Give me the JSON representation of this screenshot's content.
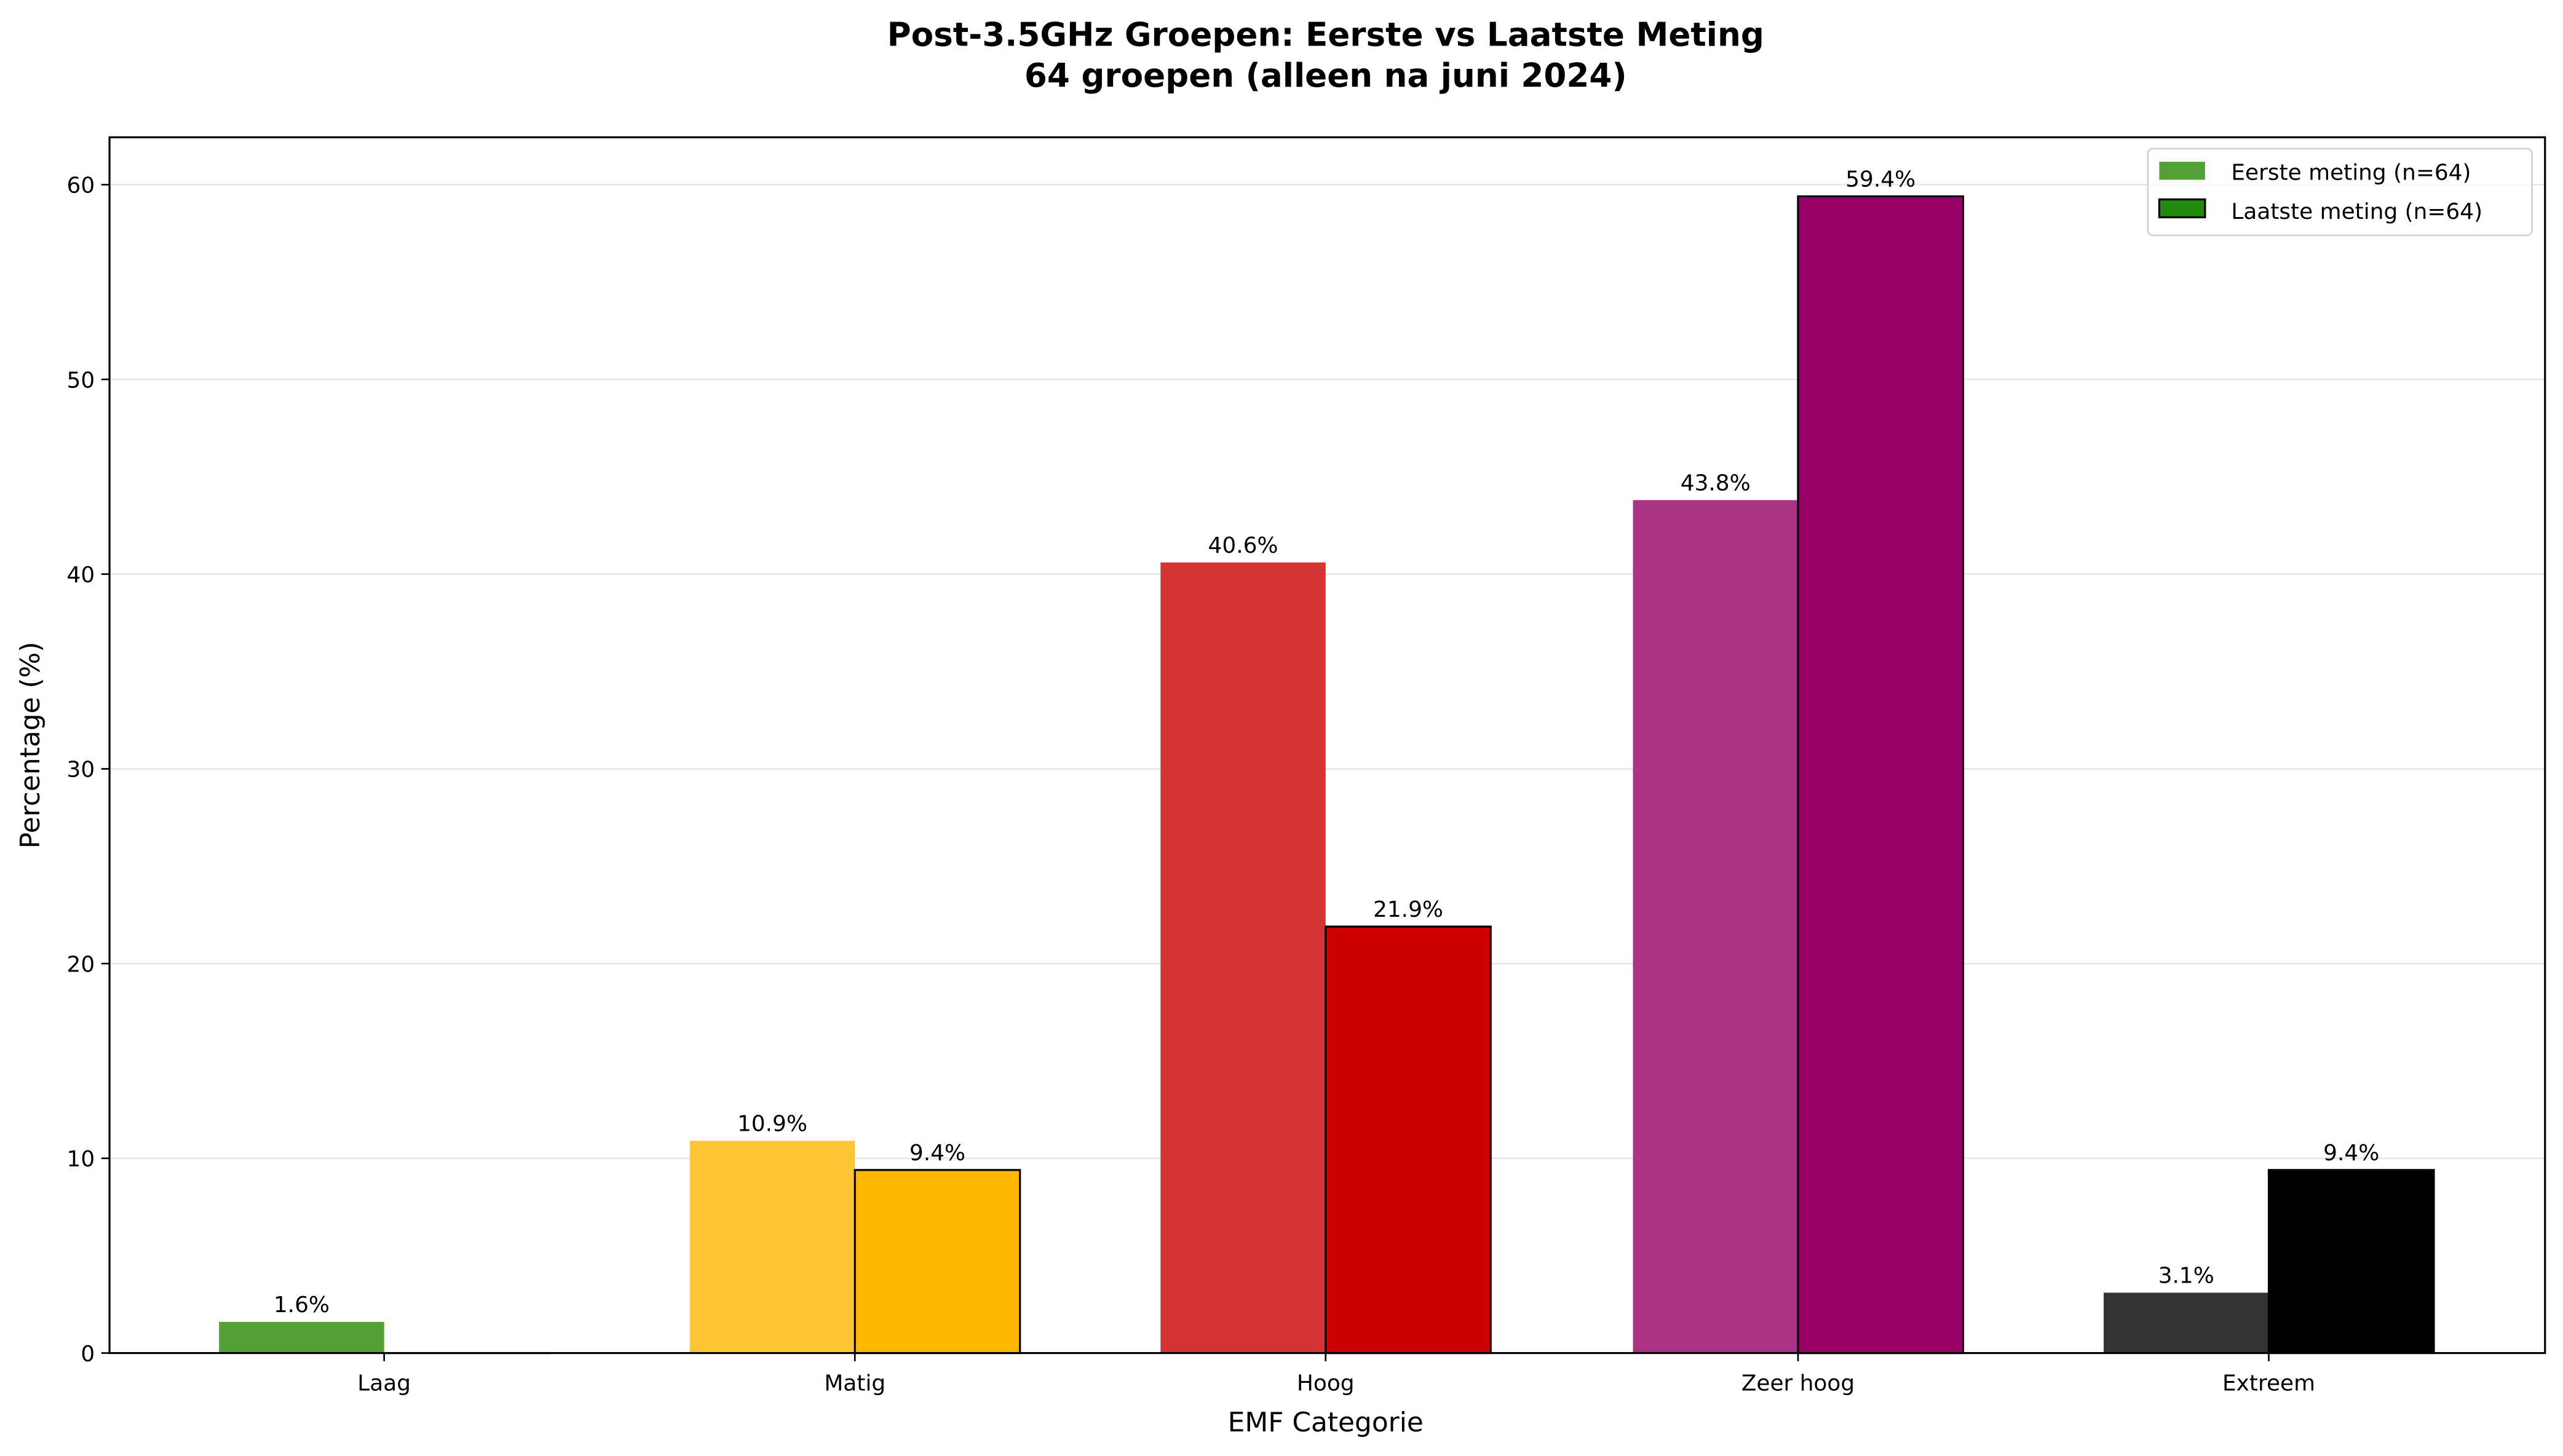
{
  "chart_data": {
    "type": "bar",
    "title": "Post-3.5GHz Groepen: Eerste vs Laatste Meting",
    "subtitle": "64 groepen (alleen na juni 2024)",
    "xlabel": "EMF Categorie",
    "ylabel": "Percentage (%)",
    "ylim": [
      0,
      62.4
    ],
    "yticks": [
      0,
      10,
      20,
      30,
      40,
      50,
      60
    ],
    "grid": "y",
    "legend_position": "upper right",
    "categories": [
      "Laag",
      "Matig",
      "Hoog",
      "Zeer hoog",
      "Extreem"
    ],
    "series": [
      {
        "name": "Eerste meting (n=64)",
        "values": [
          1.6,
          10.9,
          40.6,
          43.8,
          3.1
        ],
        "labels": [
          "1.6%",
          "10.9%",
          "40.6%",
          "43.8%",
          "3.1%"
        ],
        "colors": [
          "#52a036",
          "#fec534",
          "#d53434",
          "#ab3383",
          "#333333"
        ],
        "edge": "none"
      },
      {
        "name": "Laatste meting (n=64)",
        "values": [
          0.0,
          9.4,
          21.9,
          59.4,
          9.4
        ],
        "labels": [
          "",
          "9.4%",
          "21.9%",
          "59.4%",
          "9.4%"
        ],
        "colors": [
          "#228b0e",
          "#ffb800",
          "#cc0000",
          "#990066",
          "#000000"
        ],
        "edge": "#000000"
      }
    ]
  },
  "legend": {
    "items": [
      {
        "label": "Eerste meting (n=64)",
        "color": "#52a036",
        "edge": "none"
      },
      {
        "label": "Laatste meting (n=64)",
        "color": "#228b0e",
        "edge": "#000000"
      }
    ]
  },
  "colors": {
    "grid": "#e6e6e6",
    "axes": "#000000",
    "legend_border": "#d0d0d0"
  }
}
